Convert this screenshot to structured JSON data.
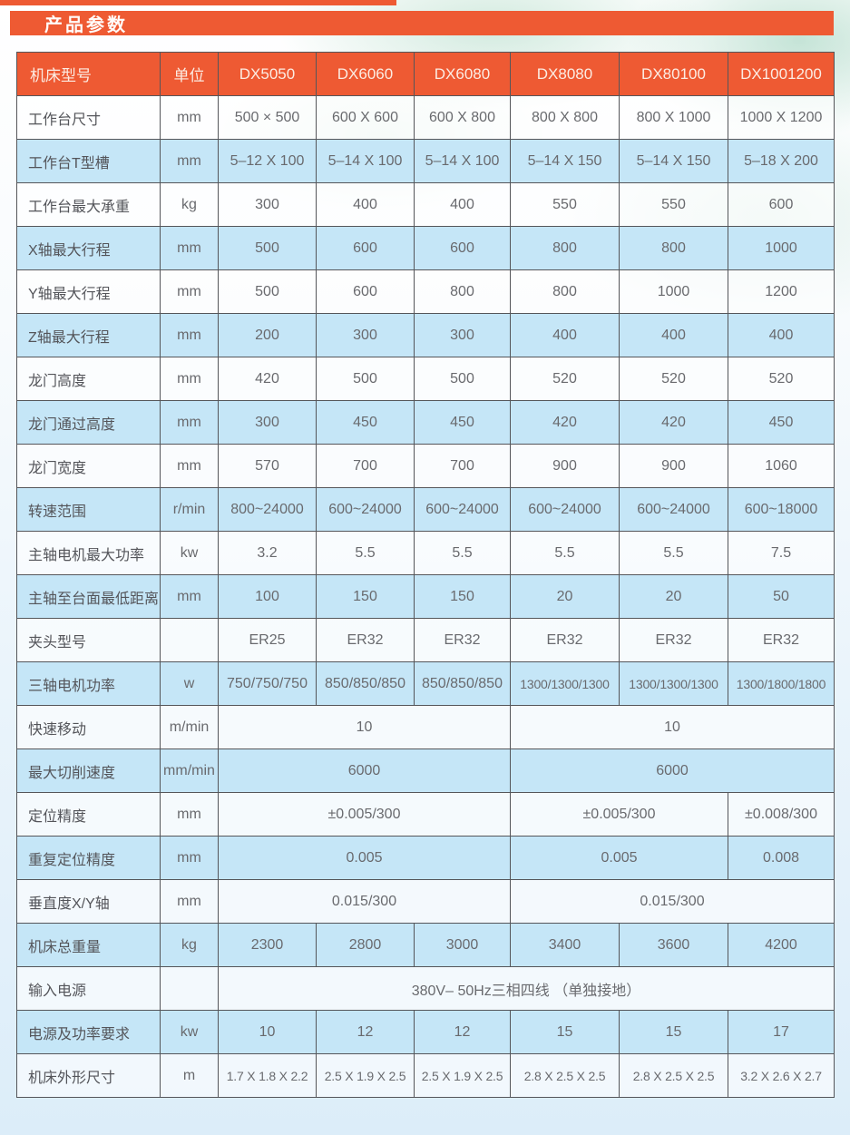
{
  "title": "产品参数",
  "colors": {
    "accent_orange": "#ee5a33",
    "row_blue": "#c5e6f7",
    "header_text": "#fcece3",
    "cell_text": "#696a6e"
  },
  "table": {
    "header": [
      "机床型号",
      "单位",
      "DX5050",
      "DX6060",
      "DX6080",
      "DX8080",
      "DX80100",
      "DX1001200"
    ],
    "rows": [
      {
        "label": "工作台尺寸",
        "unit": "mm",
        "cells": [
          {
            "text": "500 × 500",
            "span": 1
          },
          {
            "text": "600 X 600",
            "span": 1
          },
          {
            "text": "600 X 800",
            "span": 1
          },
          {
            "text": "800 X 800",
            "span": 1
          },
          {
            "text": "800 X 1000",
            "span": 1
          },
          {
            "text": "1000 X 1200",
            "span": 1
          }
        ]
      },
      {
        "label": "工作台T型槽",
        "unit": "mm",
        "cells": [
          {
            "text": "5–12 X 100",
            "span": 1
          },
          {
            "text": "5–14 X 100",
            "span": 1
          },
          {
            "text": "5–14 X 100",
            "span": 1
          },
          {
            "text": "5–14 X 150",
            "span": 1
          },
          {
            "text": "5–14 X 150",
            "span": 1
          },
          {
            "text": "5–18 X 200",
            "span": 1
          }
        ]
      },
      {
        "label": "工作台最大承重",
        "unit": "kg",
        "cells": [
          {
            "text": "300",
            "span": 1
          },
          {
            "text": "400",
            "span": 1
          },
          {
            "text": "400",
            "span": 1
          },
          {
            "text": "550",
            "span": 1
          },
          {
            "text": "550",
            "span": 1
          },
          {
            "text": "600",
            "span": 1
          }
        ]
      },
      {
        "label": "X轴最大行程",
        "unit": "mm",
        "cells": [
          {
            "text": "500",
            "span": 1
          },
          {
            "text": "600",
            "span": 1
          },
          {
            "text": "600",
            "span": 1
          },
          {
            "text": "800",
            "span": 1
          },
          {
            "text": "800",
            "span": 1
          },
          {
            "text": "1000",
            "span": 1
          }
        ]
      },
      {
        "label": "Y轴最大行程",
        "unit": "mm",
        "cells": [
          {
            "text": "500",
            "span": 1
          },
          {
            "text": "600",
            "span": 1
          },
          {
            "text": "800",
            "span": 1
          },
          {
            "text": "800",
            "span": 1
          },
          {
            "text": "1000",
            "span": 1
          },
          {
            "text": "1200",
            "span": 1
          }
        ]
      },
      {
        "label": "Z轴最大行程",
        "unit": "mm",
        "cells": [
          {
            "text": "200",
            "span": 1
          },
          {
            "text": "300",
            "span": 1
          },
          {
            "text": "300",
            "span": 1
          },
          {
            "text": "400",
            "span": 1
          },
          {
            "text": "400",
            "span": 1
          },
          {
            "text": "400",
            "span": 1
          }
        ]
      },
      {
        "label": "龙门高度",
        "unit": "mm",
        "cells": [
          {
            "text": "420",
            "span": 1
          },
          {
            "text": "500",
            "span": 1
          },
          {
            "text": "500",
            "span": 1
          },
          {
            "text": "520",
            "span": 1
          },
          {
            "text": "520",
            "span": 1
          },
          {
            "text": "520",
            "span": 1
          }
        ]
      },
      {
        "label": "龙门通过高度",
        "unit": "mm",
        "cells": [
          {
            "text": "300",
            "span": 1
          },
          {
            "text": "450",
            "span": 1
          },
          {
            "text": "450",
            "span": 1
          },
          {
            "text": "420",
            "span": 1
          },
          {
            "text": "420",
            "span": 1
          },
          {
            "text": "450",
            "span": 1
          }
        ]
      },
      {
        "label": "龙门宽度",
        "unit": "mm",
        "cells": [
          {
            "text": "570",
            "span": 1
          },
          {
            "text": "700",
            "span": 1
          },
          {
            "text": "700",
            "span": 1
          },
          {
            "text": "900",
            "span": 1
          },
          {
            "text": "900",
            "span": 1
          },
          {
            "text": "1060",
            "span": 1
          }
        ]
      },
      {
        "label": "转速范围",
        "unit": "r/min",
        "cells": [
          {
            "text": "800~24000",
            "span": 1
          },
          {
            "text": "600~24000",
            "span": 1
          },
          {
            "text": "600~24000",
            "span": 1
          },
          {
            "text": "600~24000",
            "span": 1
          },
          {
            "text": "600~24000",
            "span": 1
          },
          {
            "text": "600~18000",
            "span": 1
          }
        ]
      },
      {
        "label": "主轴电机最大功率",
        "unit": "kw",
        "cells": [
          {
            "text": "3.2",
            "span": 1
          },
          {
            "text": "5.5",
            "span": 1
          },
          {
            "text": "5.5",
            "span": 1
          },
          {
            "text": "5.5",
            "span": 1
          },
          {
            "text": "5.5",
            "span": 1
          },
          {
            "text": "7.5",
            "span": 1
          }
        ]
      },
      {
        "label": "主轴至台面最低距离",
        "unit": "mm",
        "cells": [
          {
            "text": "100",
            "span": 1
          },
          {
            "text": "150",
            "span": 1
          },
          {
            "text": "150",
            "span": 1
          },
          {
            "text": "20",
            "span": 1
          },
          {
            "text": "20",
            "span": 1
          },
          {
            "text": "50",
            "span": 1
          }
        ]
      },
      {
        "label": "夹头型号",
        "unit": "",
        "cells": [
          {
            "text": "ER25",
            "span": 1
          },
          {
            "text": "ER32",
            "span": 1
          },
          {
            "text": "ER32",
            "span": 1
          },
          {
            "text": "ER32",
            "span": 1
          },
          {
            "text": "ER32",
            "span": 1
          },
          {
            "text": "ER32",
            "span": 1
          }
        ]
      },
      {
        "label": "三轴电机功率",
        "unit": "w",
        "cells": [
          {
            "text": "750/750/750",
            "span": 1
          },
          {
            "text": "850/850/850",
            "span": 1
          },
          {
            "text": "850/850/850",
            "span": 1
          },
          {
            "text": "1300/1300/1300",
            "span": 1
          },
          {
            "text": "1300/1300/1300",
            "span": 1
          },
          {
            "text": "1300/1800/1800",
            "span": 1
          }
        ]
      },
      {
        "label": "快速移动",
        "unit": "m/min",
        "cells": [
          {
            "text": "10",
            "span": 3
          },
          {
            "text": "10",
            "span": 3
          }
        ]
      },
      {
        "label": "最大切削速度",
        "unit": "mm/min",
        "cells": [
          {
            "text": "6000",
            "span": 3
          },
          {
            "text": "6000",
            "span": 3
          }
        ]
      },
      {
        "label": "定位精度",
        "unit": "mm",
        "cells": [
          {
            "text": "±0.005/300",
            "span": 3
          },
          {
            "text": "±0.005/300",
            "span": 2
          },
          {
            "text": "±0.008/300",
            "span": 1
          }
        ]
      },
      {
        "label": "重复定位精度",
        "unit": "mm",
        "cells": [
          {
            "text": "0.005",
            "span": 3
          },
          {
            "text": "0.005",
            "span": 2
          },
          {
            "text": "0.008",
            "span": 1
          }
        ]
      },
      {
        "label": "垂直度X/Y轴",
        "unit": "mm",
        "cells": [
          {
            "text": "0.015/300",
            "span": 3
          },
          {
            "text": "0.015/300",
            "span": 3
          }
        ]
      },
      {
        "label": "机床总重量",
        "unit": "kg",
        "cells": [
          {
            "text": "2300",
            "span": 1
          },
          {
            "text": "2800",
            "span": 1
          },
          {
            "text": "3000",
            "span": 1
          },
          {
            "text": "3400",
            "span": 1
          },
          {
            "text": "3600",
            "span": 1
          },
          {
            "text": "4200",
            "span": 1
          }
        ]
      },
      {
        "label": "输入电源",
        "unit": "",
        "cells": [
          {
            "text": "380V– 50Hz三相四线 （单独接地）",
            "span": 6
          }
        ]
      },
      {
        "label": "电源及功率要求",
        "unit": "kw",
        "cells": [
          {
            "text": "10",
            "span": 1
          },
          {
            "text": "12",
            "span": 1
          },
          {
            "text": "12",
            "span": 1
          },
          {
            "text": "15",
            "span": 1
          },
          {
            "text": "15",
            "span": 1
          },
          {
            "text": "17",
            "span": 1
          }
        ]
      },
      {
        "label": "机床外形尺寸",
        "unit": "m",
        "cells": [
          {
            "text": "1.7 X 1.8 X 2.2",
            "span": 1
          },
          {
            "text": "2.5 X 1.9 X 2.5",
            "span": 1
          },
          {
            "text": "2.5 X 1.9 X 2.5",
            "span": 1
          },
          {
            "text": "2.8 X 2.5 X 2.5",
            "span": 1
          },
          {
            "text": "2.8 X 2.5 X 2.5",
            "span": 1
          },
          {
            "text": "3.2 X 2.6 X 2.7",
            "span": 1
          }
        ]
      }
    ]
  }
}
